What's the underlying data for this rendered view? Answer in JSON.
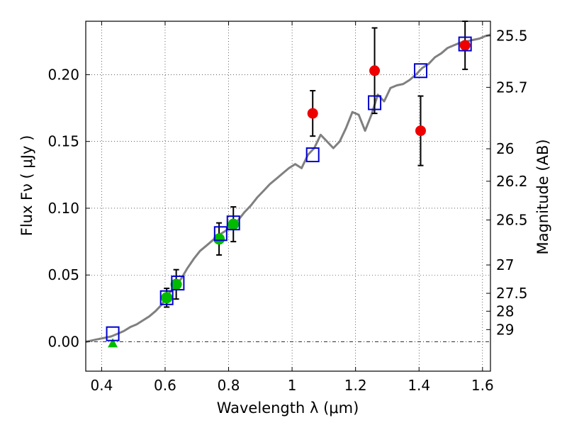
{
  "chart_data": {
    "type": "scatter",
    "xlabel": "Wavelength  λ (μm)",
    "ylabel": "Flux  Fν  ( μJy )",
    "y2label": "Magnitude (AB)",
    "xlim": [
      0.35,
      1.625
    ],
    "ylim": [
      -0.022,
      0.24
    ],
    "xticks": [
      0.4,
      0.6,
      0.8,
      1.0,
      1.2,
      1.4,
      1.6
    ],
    "xtick_labels": [
      "0.4",
      "0.6",
      "0.8",
      "1",
      "1.2",
      "1.4",
      "1.6"
    ],
    "yticks": [
      0.0,
      0.05,
      0.1,
      0.15,
      0.2
    ],
    "ytick_labels": [
      "0.00",
      "0.05",
      "0.10",
      "0.15",
      "0.20"
    ],
    "mag_ticks": [
      25.5,
      25.7,
      26,
      26.2,
      26.5,
      27,
      27.5,
      28,
      29
    ],
    "mag_tick_labels": [
      "25.5",
      "25.7",
      "26",
      "26.2",
      "26.5",
      "27",
      "27.5",
      "28",
      "29"
    ],
    "grid": true,
    "colors": {
      "model": "#808080",
      "green": "#00bb00",
      "red": "#ee0000",
      "blue": "#0000cc",
      "error": "#000000"
    },
    "model_spectrum": {
      "x": [
        0.35,
        0.37,
        0.39,
        0.41,
        0.43,
        0.45,
        0.47,
        0.49,
        0.51,
        0.53,
        0.55,
        0.57,
        0.59,
        0.6,
        0.61,
        0.62,
        0.63,
        0.65,
        0.67,
        0.69,
        0.71,
        0.73,
        0.75,
        0.77,
        0.79,
        0.81,
        0.83,
        0.85,
        0.87,
        0.89,
        0.91,
        0.93,
        0.95,
        0.97,
        0.99,
        1.01,
        1.03,
        1.05,
        1.07,
        1.09,
        1.11,
        1.13,
        1.15,
        1.17,
        1.19,
        1.21,
        1.23,
        1.25,
        1.27,
        1.29,
        1.31,
        1.33,
        1.35,
        1.37,
        1.39,
        1.41,
        1.43,
        1.45,
        1.47,
        1.49,
        1.51,
        1.53,
        1.55,
        1.57,
        1.59,
        1.61,
        1.625
      ],
      "y": [
        0.0,
        0.001,
        0.002,
        0.003,
        0.004,
        0.006,
        0.008,
        0.011,
        0.013,
        0.016,
        0.019,
        0.023,
        0.028,
        0.032,
        0.036,
        0.038,
        0.041,
        0.047,
        0.055,
        0.062,
        0.068,
        0.072,
        0.076,
        0.08,
        0.083,
        0.087,
        0.091,
        0.097,
        0.102,
        0.108,
        0.113,
        0.118,
        0.122,
        0.126,
        0.13,
        0.133,
        0.13,
        0.14,
        0.145,
        0.155,
        0.15,
        0.145,
        0.15,
        0.16,
        0.172,
        0.17,
        0.158,
        0.17,
        0.185,
        0.18,
        0.19,
        0.192,
        0.193,
        0.196,
        0.2,
        0.205,
        0.208,
        0.213,
        0.216,
        0.22,
        0.222,
        0.224,
        0.225,
        0.226,
        0.227,
        0.229,
        0.23
      ]
    },
    "green_points": [
      {
        "x": 0.605,
        "y": 0.033,
        "yerr": 0.007
      },
      {
        "x": 0.635,
        "y": 0.043,
        "yerr": 0.011
      },
      {
        "x": 0.77,
        "y": 0.077,
        "yerr": 0.012
      },
      {
        "x": 0.815,
        "y": 0.088,
        "yerr": 0.013
      }
    ],
    "green_triangle": {
      "x": 0.435,
      "y": -0.001
    },
    "red_points": [
      {
        "x": 1.065,
        "y": 0.171,
        "yerr": 0.017
      },
      {
        "x": 1.26,
        "y": 0.203,
        "yerr": 0.032
      },
      {
        "x": 1.405,
        "y": 0.158,
        "yerr": 0.026
      },
      {
        "x": 1.545,
        "y": 0.222,
        "yerr": 0.018
      }
    ],
    "blue_squares": [
      {
        "x": 0.435,
        "y": 0.006
      },
      {
        "x": 0.605,
        "y": 0.033
      },
      {
        "x": 0.64,
        "y": 0.044
      },
      {
        "x": 0.775,
        "y": 0.081
      },
      {
        "x": 0.815,
        "y": 0.089
      },
      {
        "x": 1.065,
        "y": 0.14
      },
      {
        "x": 1.26,
        "y": 0.179
      },
      {
        "x": 1.405,
        "y": 0.203
      },
      {
        "x": 1.545,
        "y": 0.223
      }
    ]
  }
}
